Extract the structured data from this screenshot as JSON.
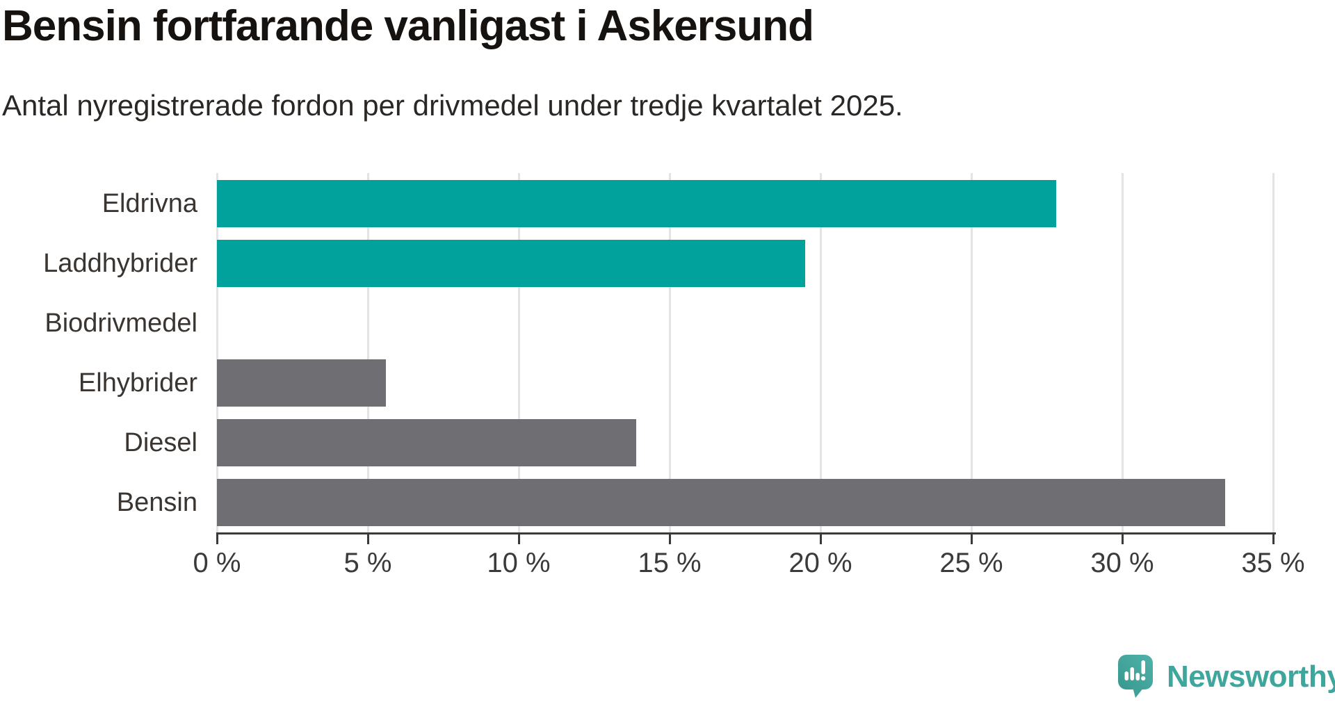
{
  "header": {
    "title": "Bensin fortfarande vanligast i Askersund",
    "subtitle": "Antal nyregistrerade fordon per drivmedel under tredje kvartalet 2025."
  },
  "chart_data": {
    "type": "bar",
    "orientation": "horizontal",
    "title": "Bensin fortfarande vanligast i Askersund",
    "subtitle": "Antal nyregistrerade fordon per drivmedel under tredje kvartalet 2025.",
    "categories": [
      "Eldrivna",
      "Laddhybrider",
      "Biodrivmedel",
      "Elhybrider",
      "Diesel",
      "Bensin"
    ],
    "values": [
      27.8,
      19.5,
      0,
      5.6,
      13.9,
      33.4
    ],
    "unit": "%",
    "xlabel": "",
    "ylabel": "",
    "xlim": [
      0,
      35
    ],
    "x_ticks": [
      0,
      5,
      10,
      15,
      20,
      25,
      30,
      35
    ],
    "x_tick_labels": [
      "0 %",
      "5 %",
      "10 %",
      "15 %",
      "20 %",
      "25 %",
      "30 %",
      "35 %"
    ],
    "bar_colors": [
      "#00a29b",
      "#00a29b",
      "#00a29b",
      "#6f6e72",
      "#6f6e72",
      "#6f6e72"
    ],
    "grid": "vertical-gridlines",
    "legend": "none"
  },
  "branding": {
    "logo_text": "Newsworthy",
    "logo_icon": "newsworthy-speech-bubble-bar-chart-icon",
    "logo_color": "#3ea69d"
  },
  "style": {
    "teal": "#00a29b",
    "gray": "#6f6e72",
    "axis_color": "#3a3a3a",
    "gridline_color": "#e3e3e3",
    "background": "#ffffff"
  }
}
